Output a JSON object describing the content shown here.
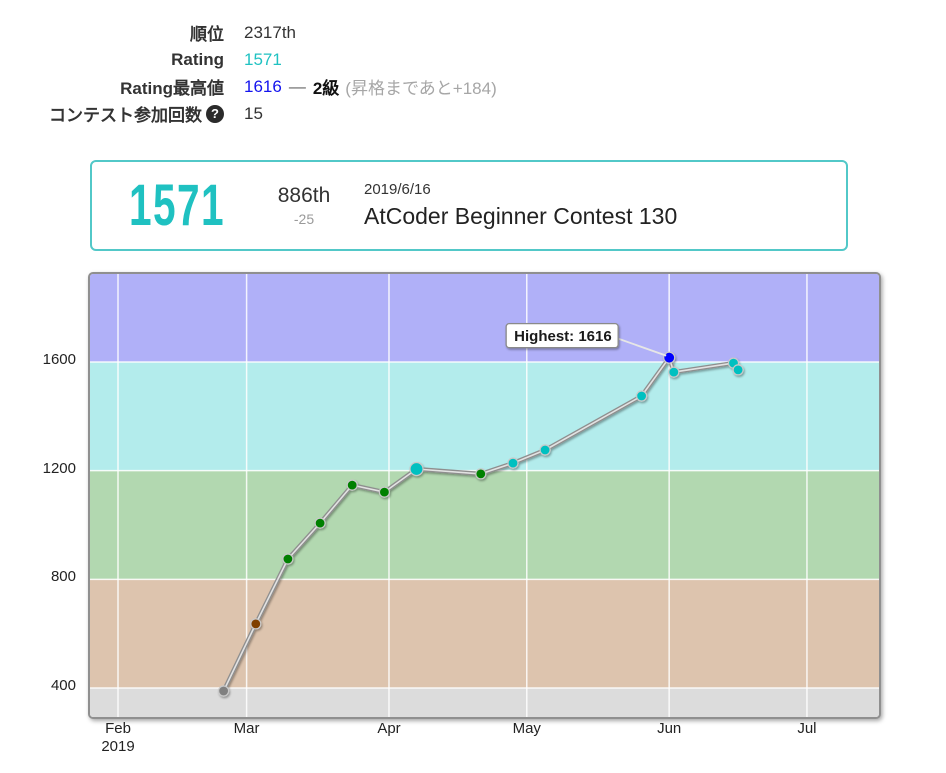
{
  "stats": {
    "rows": {
      "rank": {
        "label": "順位",
        "value": "2317th"
      },
      "rating": {
        "label": "Rating",
        "value": "1571"
      },
      "highest": {
        "label": "Rating最高値",
        "value": "1616",
        "dash": "—",
        "grade": "2級",
        "note": "(昇格まであと+184)"
      },
      "contests": {
        "label": "コンテスト参加回数",
        "icon": "question-circle-icon",
        "icon_glyph": "?",
        "value": "15"
      }
    }
  },
  "contest_panel": {
    "rating": "1571",
    "rank": "886th",
    "delta": "-25",
    "date": "2019/6/16",
    "name": "AtCoder Beginner Contest 130"
  },
  "colors": {
    "rating_cyan": "#20c2c2",
    "highest_blue": "#1414ee",
    "panel_border": "#52c8c8",
    "note_gray": "#a6a6a6"
  },
  "chart_data": {
    "type": "line",
    "series_name": "Rating",
    "x_axis": {
      "ticks": [
        {
          "label": "Feb",
          "sublabel": "2019",
          "date": "2019-02-01"
        },
        {
          "label": "Mar",
          "date": "2019-03-01"
        },
        {
          "label": "Apr",
          "date": "2019-04-01"
        },
        {
          "label": "May",
          "date": "2019-05-01"
        },
        {
          "label": "Jun",
          "date": "2019-06-01"
        },
        {
          "label": "Jul",
          "date": "2019-07-01"
        }
      ]
    },
    "y_axis": {
      "ticks": [
        400,
        800,
        1200,
        1600
      ]
    },
    "ylim": [
      294,
      1924
    ],
    "grid": true,
    "bands": [
      {
        "name": "blue",
        "from": 1600,
        "to": 2000,
        "color": "#b0b0f8"
      },
      {
        "name": "cyan",
        "from": 1200,
        "to": 1600,
        "color": "#b3ecec"
      },
      {
        "name": "green",
        "from": 800,
        "to": 1200,
        "color": "#b2d8b0"
      },
      {
        "name": "brown",
        "from": 400,
        "to": 800,
        "color": "#ddc4ae"
      },
      {
        "name": "gray",
        "from": 0,
        "to": 400,
        "color": "#dcdcdc"
      }
    ],
    "points": [
      {
        "date": "2019-02-24",
        "rating": 389,
        "color": "#808080"
      },
      {
        "date": "2019-03-03",
        "rating": 636,
        "color": "#804000"
      },
      {
        "date": "2019-03-10",
        "rating": 875,
        "color": "#008000"
      },
      {
        "date": "2019-03-17",
        "rating": 1007,
        "color": "#008000"
      },
      {
        "date": "2019-03-24",
        "rating": 1147,
        "color": "#008000"
      },
      {
        "date": "2019-03-31",
        "rating": 1121,
        "color": "#008000"
      },
      {
        "date": "2019-04-07",
        "rating": 1206,
        "color": "#00c0c0",
        "emphasized": true
      },
      {
        "date": "2019-04-21",
        "rating": 1188,
        "color": "#008000"
      },
      {
        "date": "2019-04-28",
        "rating": 1228,
        "color": "#00c0c0"
      },
      {
        "date": "2019-05-05",
        "rating": 1276,
        "color": "#00c0c0"
      },
      {
        "date": "2019-05-26",
        "rating": 1475,
        "color": "#00c0c0"
      },
      {
        "date": "2019-06-01",
        "rating": 1616,
        "color": "#0000ff"
      },
      {
        "date": "2019-06-02",
        "rating": 1563,
        "color": "#00c0c0"
      },
      {
        "date": "2019-06-15",
        "rating": 1596,
        "color": "#00c0c0"
      },
      {
        "date": "2019-06-16",
        "rating": 1571,
        "color": "#00c0c0"
      }
    ],
    "line_color": "#9c9c9c",
    "annotation": {
      "text": "Highest: 1616",
      "point_index": 11
    }
  }
}
